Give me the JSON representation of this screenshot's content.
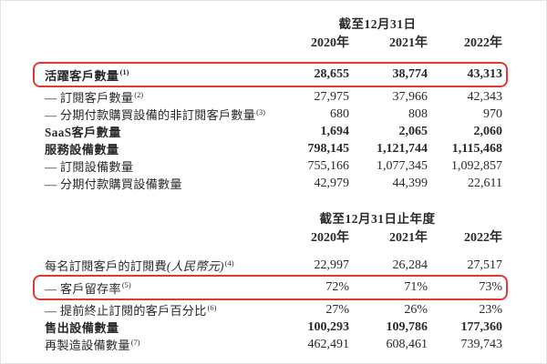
{
  "colors": {
    "accent_red": "#e03a2f",
    "text": "#2a2a2a",
    "page_border": "#e3e3e3"
  },
  "section1": {
    "period": "截至12月31日",
    "years": [
      "2020年",
      "2021年",
      "2022年"
    ],
    "rows": [
      {
        "label": "活躍客戶數量",
        "sup": "(1)",
        "values": [
          "28,655",
          "38,774",
          "43,313"
        ]
      },
      {
        "label": "— 訂閱客戶數量",
        "sup": "(2)",
        "values": [
          "27,975",
          "37,966",
          "42,343"
        ]
      },
      {
        "label": "— 分期付款購買設備的非訂閱客戶數量",
        "sup": "(3)",
        "values": [
          "680",
          "808",
          "970"
        ]
      },
      {
        "label": "SaaS客戶數量",
        "values": [
          "1,694",
          "2,065",
          "2,060"
        ]
      },
      {
        "label": "服務設備數量",
        "values": [
          "798,145",
          "1,121,744",
          "1,115,468"
        ]
      },
      {
        "label": "— 訂閱設備數量",
        "values": [
          "755,166",
          "1,077,345",
          "1,092,857"
        ]
      },
      {
        "label": "— 分期付款購買設備數量",
        "values": [
          "42,979",
          "44,399",
          "22,611"
        ]
      }
    ]
  },
  "section2": {
    "period": "截至12月31日止年度",
    "years": [
      "2020年",
      "2021年",
      "2022年"
    ],
    "rows": [
      {
        "label": "每名訂閱客戶的訂閱費",
        "paren": "(人民幣元)",
        "sup": "(4)",
        "values": [
          "22,997",
          "26,284",
          "27,517"
        ]
      },
      {
        "label": "— 客戶留存率",
        "sup": "(5)",
        "values": [
          "72%",
          "71%",
          "73%"
        ]
      },
      {
        "label": "— 提前終止訂閱的客戶百分比",
        "sup": "(6)",
        "values": [
          "27%",
          "26%",
          "23%"
        ]
      },
      {
        "label": "售出設備數量",
        "values": [
          "100,293",
          "109,786",
          "177,360"
        ]
      },
      {
        "label": "再製造設備數量",
        "sup": "(7)",
        "values": [
          "462,491",
          "608,461",
          "739,743"
        ]
      }
    ]
  }
}
